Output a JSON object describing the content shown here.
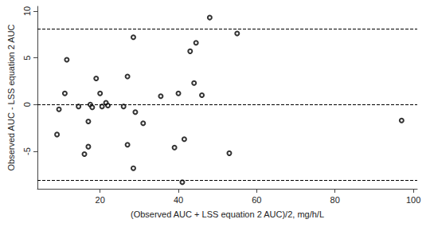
{
  "chart_data": {
    "type": "scatter",
    "x_label": "(Observed AUC + LSS equation 2 AUC)/2, mg/h/L",
    "y_label": "Observed AUC - LSS equation 2 AUC",
    "x": [
      9,
      9.5,
      11,
      11.5,
      14.5,
      16,
      17,
      17,
      17.5,
      18,
      19,
      20,
      20.5,
      21.5,
      22,
      26,
      27,
      27,
      28.5,
      28.5,
      29,
      31,
      35.5,
      39,
      40,
      41,
      41.5,
      43,
      44,
      44.5,
      46,
      48,
      53,
      55,
      97
    ],
    "values": [
      -3.2,
      -0.5,
      1.2,
      4.8,
      -0.2,
      -5.3,
      -4.5,
      -1.8,
      0.0,
      -0.3,
      2.8,
      1.2,
      -0.2,
      0.2,
      -0.1,
      -0.2,
      -4.3,
      3.0,
      -6.8,
      7.2,
      -0.8,
      -2.0,
      0.9,
      -4.6,
      1.2,
      -8.3,
      -3.7,
      5.7,
      2.3,
      6.6,
      1.0,
      9.3,
      -5.2,
      7.6,
      -1.7
    ],
    "reference_lines": [
      8.1,
      0,
      -8.1
    ],
    "color": "#000000",
    "marker": "circle",
    "line_style": "dashed",
    "xlim": [
      4,
      101
    ],
    "xticks": [
      20,
      40,
      60,
      80,
      100
    ],
    "ylim": [
      -9,
      10.5
    ],
    "yticks": [
      -5,
      0,
      5,
      10
    ],
    "grid": false
  }
}
